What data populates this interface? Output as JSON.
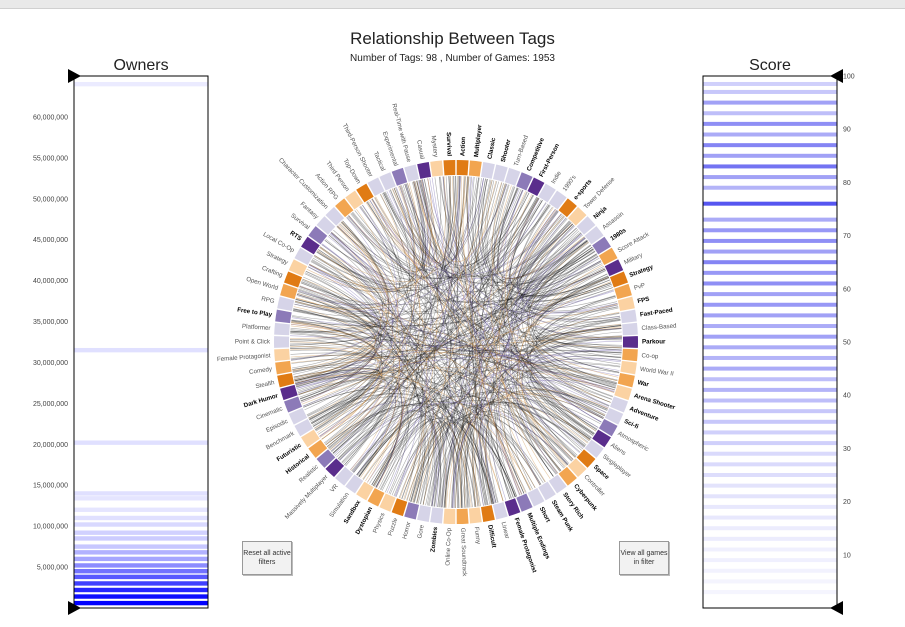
{
  "title": "Relationship Between Tags",
  "subtitle": "Number of Tags: 98 , Number of Games: 1953",
  "buttons": {
    "reset": "Reset all active filters",
    "view": "View all games in filter"
  },
  "colors": {
    "orange_dark": "#e07b14",
    "orange_mid": "#f2a550",
    "orange_light": "#fbd2a2",
    "purple_dark": "#5a2d8c",
    "purple_mid": "#8c7ab8",
    "purple_light": "#d6d4e8",
    "owners_bar": "#0000ff",
    "score_bar": "#4444ee"
  },
  "chart_data": [
    {
      "type": "heatmap",
      "name": "owners",
      "title": "Owners",
      "ylim": [
        0,
        65000000
      ],
      "yticks": [
        "5,000,000",
        "10,000,000",
        "15,000,000",
        "20,000,000",
        "25,000,000",
        "30,000,000",
        "35,000,000",
        "40,000,000",
        "45,000,000",
        "50,000,000",
        "55,000,000",
        "60,000,000"
      ],
      "ytick_values": [
        5000000,
        10000000,
        15000000,
        20000000,
        25000000,
        30000000,
        35000000,
        40000000,
        45000000,
        50000000,
        55000000,
        60000000
      ],
      "bands": [
        {
          "y": 64000000,
          "opacity": 0.08
        },
        {
          "y": 31500000,
          "opacity": 0.12
        },
        {
          "y": 20200000,
          "opacity": 0.12
        },
        {
          "y": 14000000,
          "opacity": 0.12
        },
        {
          "y": 13400000,
          "opacity": 0.1
        },
        {
          "y": 12000000,
          "opacity": 0.1
        },
        {
          "y": 11000000,
          "opacity": 0.12
        },
        {
          "y": 10200000,
          "opacity": 0.15
        },
        {
          "y": 9200000,
          "opacity": 0.18
        },
        {
          "y": 8500000,
          "opacity": 0.2
        },
        {
          "y": 7500000,
          "opacity": 0.22
        },
        {
          "y": 6800000,
          "opacity": 0.3
        },
        {
          "y": 6000000,
          "opacity": 0.35
        },
        {
          "y": 5200000,
          "opacity": 0.45
        },
        {
          "y": 4500000,
          "opacity": 0.55
        },
        {
          "y": 3800000,
          "opacity": 0.65
        },
        {
          "y": 3000000,
          "opacity": 0.75
        },
        {
          "y": 2200000,
          "opacity": 0.85
        },
        {
          "y": 1400000,
          "opacity": 0.95
        },
        {
          "y": 600000,
          "opacity": 1.0
        }
      ]
    },
    {
      "type": "heatmap",
      "name": "score",
      "title": "Score",
      "ylim": [
        0,
        100
      ],
      "yticks": [
        "10",
        "20",
        "30",
        "40",
        "50",
        "60",
        "70",
        "80",
        "90",
        "100"
      ],
      "ytick_values": [
        10,
        20,
        30,
        40,
        50,
        60,
        70,
        80,
        90,
        100
      ],
      "bands": [
        {
          "y": 98.5,
          "opacity": 0.25
        },
        {
          "y": 97,
          "opacity": 0.3
        },
        {
          "y": 95,
          "opacity": 0.5
        },
        {
          "y": 93,
          "opacity": 0.35
        },
        {
          "y": 91,
          "opacity": 0.6
        },
        {
          "y": 89,
          "opacity": 0.45
        },
        {
          "y": 87,
          "opacity": 0.65
        },
        {
          "y": 85,
          "opacity": 0.5
        },
        {
          "y": 83,
          "opacity": 0.75
        },
        {
          "y": 81,
          "opacity": 0.5
        },
        {
          "y": 79,
          "opacity": 0.4
        },
        {
          "y": 76,
          "opacity": 0.9
        },
        {
          "y": 73,
          "opacity": 0.45
        },
        {
          "y": 71,
          "opacity": 0.55
        },
        {
          "y": 69,
          "opacity": 0.6
        },
        {
          "y": 67,
          "opacity": 0.5
        },
        {
          "y": 65,
          "opacity": 0.65
        },
        {
          "y": 63,
          "opacity": 0.55
        },
        {
          "y": 61,
          "opacity": 0.6
        },
        {
          "y": 59,
          "opacity": 0.5
        },
        {
          "y": 57,
          "opacity": 0.55
        },
        {
          "y": 55,
          "opacity": 0.5
        },
        {
          "y": 53,
          "opacity": 0.45
        },
        {
          "y": 51,
          "opacity": 0.5
        },
        {
          "y": 49,
          "opacity": 0.45
        },
        {
          "y": 47,
          "opacity": 0.4
        },
        {
          "y": 45,
          "opacity": 0.45
        },
        {
          "y": 43,
          "opacity": 0.35
        },
        {
          "y": 41,
          "opacity": 0.4
        },
        {
          "y": 39,
          "opacity": 0.35
        },
        {
          "y": 37,
          "opacity": 0.3
        },
        {
          "y": 35,
          "opacity": 0.3
        },
        {
          "y": 33,
          "opacity": 0.25
        },
        {
          "y": 31,
          "opacity": 0.25
        },
        {
          "y": 29,
          "opacity": 0.2
        },
        {
          "y": 27,
          "opacity": 0.2
        },
        {
          "y": 25,
          "opacity": 0.18
        },
        {
          "y": 23,
          "opacity": 0.15
        },
        {
          "y": 21,
          "opacity": 0.15
        },
        {
          "y": 19,
          "opacity": 0.12
        },
        {
          "y": 17,
          "opacity": 0.12
        },
        {
          "y": 15,
          "opacity": 0.1
        },
        {
          "y": 13,
          "opacity": 0.1
        },
        {
          "y": 11,
          "opacity": 0.08
        },
        {
          "y": 9,
          "opacity": 0.08
        },
        {
          "y": 7,
          "opacity": 0.07
        },
        {
          "y": 5,
          "opacity": 0.06
        },
        {
          "y": 3,
          "opacity": 0.05
        }
      ]
    },
    {
      "type": "chord",
      "name": "tags",
      "tags": [
        {
          "label": "Action",
          "color": "orange_dark",
          "bold": true
        },
        {
          "label": "Multiplayer",
          "color": "orange_mid",
          "bold": true
        },
        {
          "label": "Classic",
          "color": "purple_light",
          "bold": true
        },
        {
          "label": "Shooter",
          "color": "purple_light",
          "bold": true
        },
        {
          "label": "Turn-Based",
          "color": "purple_light",
          "bold": false
        },
        {
          "label": "Competitive",
          "color": "purple_mid",
          "bold": true
        },
        {
          "label": "First-Person",
          "color": "purple_dark",
          "bold": true
        },
        {
          "label": "Indie",
          "color": "purple_light",
          "bold": false
        },
        {
          "label": "1990's",
          "color": "purple_light",
          "bold": false
        },
        {
          "label": "e-sports",
          "color": "orange_dark",
          "bold": true
        },
        {
          "label": "Tower Defense",
          "color": "orange_light",
          "bold": false
        },
        {
          "label": "Ninja",
          "color": "purple_light",
          "bold": true
        },
        {
          "label": "Assassin",
          "color": "purple_light",
          "bold": false
        },
        {
          "label": "1980s",
          "color": "purple_mid",
          "bold": true
        },
        {
          "label": "Score Attack",
          "color": "orange_mid",
          "bold": false
        },
        {
          "label": "Military",
          "color": "purple_dark",
          "bold": false
        },
        {
          "label": "Strategy",
          "color": "orange_dark",
          "bold": true
        },
        {
          "label": "PvP",
          "color": "orange_mid",
          "bold": false
        },
        {
          "label": "FPS",
          "color": "orange_light",
          "bold": true
        },
        {
          "label": "Fast-Paced",
          "color": "purple_light",
          "bold": true
        },
        {
          "label": "Class-Based",
          "color": "purple_light",
          "bold": false
        },
        {
          "label": "Parkour",
          "color": "purple_dark",
          "bold": true
        },
        {
          "label": "Co-op",
          "color": "orange_mid",
          "bold": false
        },
        {
          "label": "World War II",
          "color": "orange_light",
          "bold": false
        },
        {
          "label": "War",
          "color": "orange_mid",
          "bold": true
        },
        {
          "label": "Arena Shooter",
          "color": "orange_light",
          "bold": true
        },
        {
          "label": "Adventure",
          "color": "purple_light",
          "bold": true
        },
        {
          "label": "Sci-fi",
          "color": "purple_light",
          "bold": true
        },
        {
          "label": "Atmospheric",
          "color": "purple_mid",
          "bold": false
        },
        {
          "label": "Aliens",
          "color": "purple_dark",
          "bold": false
        },
        {
          "label": "Singleplayer",
          "color": "purple_light",
          "bold": false
        },
        {
          "label": "Space",
          "color": "orange_dark",
          "bold": true
        },
        {
          "label": "Controller",
          "color": "orange_light",
          "bold": false
        },
        {
          "label": "Cyberpunk",
          "color": "orange_mid",
          "bold": true
        },
        {
          "label": "Story Rich",
          "color": "purple_light",
          "bold": true
        },
        {
          "label": "Steam Punk",
          "color": "purple_light",
          "bold": true
        },
        {
          "label": "Short",
          "color": "purple_light",
          "bold": true
        },
        {
          "label": "Multiple Endings",
          "color": "purple_mid",
          "bold": true
        },
        {
          "label": "Female Protagonist",
          "color": "purple_dark",
          "bold": true
        },
        {
          "label": "Linear",
          "color": "purple_light",
          "bold": false
        },
        {
          "label": "Difficult",
          "color": "orange_dark",
          "bold": true
        },
        {
          "label": "Funny",
          "color": "orange_light",
          "bold": false
        },
        {
          "label": "Great Soundtrack",
          "color": "orange_mid",
          "bold": false
        },
        {
          "label": "Online Co-Op",
          "color": "orange_light",
          "bold": false
        },
        {
          "label": "Zombies",
          "color": "purple_light",
          "bold": true
        },
        {
          "label": "Gore",
          "color": "purple_light",
          "bold": false
        },
        {
          "label": "Horror",
          "color": "purple_mid",
          "bold": false
        },
        {
          "label": "Puzzle",
          "color": "orange_dark",
          "bold": false
        },
        {
          "label": "Physics",
          "color": "orange_light",
          "bold": false
        },
        {
          "label": "Dystopian",
          "color": "orange_mid",
          "bold": true
        },
        {
          "label": "Sandbox",
          "color": "orange_light",
          "bold": true
        },
        {
          "label": "Simulation",
          "color": "purple_light",
          "bold": false
        },
        {
          "label": "VR",
          "color": "purple_light",
          "bold": false
        },
        {
          "label": "Massively Multiplayer",
          "color": "purple_dark",
          "bold": false
        },
        {
          "label": "Realistic",
          "color": "purple_mid",
          "bold": false
        },
        {
          "label": "Historical",
          "color": "orange_mid",
          "bold": true
        },
        {
          "label": "Futuristic",
          "color": "orange_light",
          "bold": true
        },
        {
          "label": "Benchmark",
          "color": "purple_light",
          "bold": false
        },
        {
          "label": "Episodic",
          "color": "purple_light",
          "bold": false
        },
        {
          "label": "Cinematic",
          "color": "purple_mid",
          "bold": false
        },
        {
          "label": "Dark Humor",
          "color": "purple_dark",
          "bold": true
        },
        {
          "label": "Stealth",
          "color": "orange_dark",
          "bold": false
        },
        {
          "label": "Comedy",
          "color": "orange_mid",
          "bold": false
        },
        {
          "label": "Female Protagonist",
          "color": "orange_light",
          "bold": false
        },
        {
          "label": "Point & Click",
          "color": "purple_light",
          "bold": false
        },
        {
          "label": "Platformer",
          "color": "purple_light",
          "bold": false
        },
        {
          "label": "Free to Play",
          "color": "purple_mid",
          "bold": true
        },
        {
          "label": "RPG",
          "color": "purple_light",
          "bold": false
        },
        {
          "label": "Open World",
          "color": "orange_mid",
          "bold": false
        },
        {
          "label": "Crafting",
          "color": "orange_dark",
          "bold": false
        },
        {
          "label": "Strategy",
          "color": "orange_light",
          "bold": false
        },
        {
          "label": "Local Co-Op",
          "color": "purple_light",
          "bold": false
        },
        {
          "label": "RTS",
          "color": "purple_dark",
          "bold": true
        },
        {
          "label": "Survival",
          "color": "purple_mid",
          "bold": false
        },
        {
          "label": "Fantasy",
          "color": "purple_light",
          "bold": false
        },
        {
          "label": "Character Customization",
          "color": "purple_light",
          "bold": false
        },
        {
          "label": "Action RPG",
          "color": "orange_mid",
          "bold": false
        },
        {
          "label": "Third Person",
          "color": "orange_light",
          "bold": false
        },
        {
          "label": "Top-Down",
          "color": "orange_dark",
          "bold": false
        },
        {
          "label": "Third-Person Shooter",
          "color": "purple_light",
          "bold": false
        },
        {
          "label": "Tactical",
          "color": "purple_light",
          "bold": false
        },
        {
          "label": "Experimental",
          "color": "purple_mid",
          "bold": false
        },
        {
          "label": "Real-Time with Pause",
          "color": "purple_light",
          "bold": false
        },
        {
          "label": "Casual",
          "color": "purple_dark",
          "bold": false
        },
        {
          "label": "Mystery",
          "color": "orange_light",
          "bold": false
        },
        {
          "label": "Survival",
          "color": "orange_dark",
          "bold": true
        }
      ]
    }
  ]
}
